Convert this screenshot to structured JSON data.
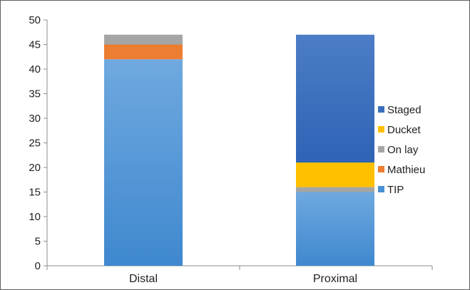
{
  "chart_data": {
    "type": "bar",
    "stacked": true,
    "title": "",
    "xlabel": "",
    "ylabel": "",
    "categories": [
      "Distal",
      "Proximal"
    ],
    "ylim": [
      0,
      50
    ],
    "yticks": [
      0,
      5,
      10,
      15,
      20,
      25,
      30,
      35,
      40,
      45,
      50
    ],
    "grid": false,
    "legend_position": "right",
    "series": [
      {
        "name": "TIP",
        "values": [
          42,
          15
        ],
        "color": "#4a90d4"
      },
      {
        "name": "Mathieu",
        "values": [
          3,
          0
        ],
        "color": "#ed7d31"
      },
      {
        "name": "On lay",
        "values": [
          2,
          1
        ],
        "color": "#a5a5a5"
      },
      {
        "name": "Ducket",
        "values": [
          0,
          5
        ],
        "color": "#ffc000"
      },
      {
        "name": "Staged",
        "values": [
          0,
          26
        ],
        "color": "#3a6fbd"
      }
    ],
    "legend_order": [
      "Staged",
      "Ducket",
      "On lay",
      "Mathieu",
      "TIP"
    ]
  }
}
